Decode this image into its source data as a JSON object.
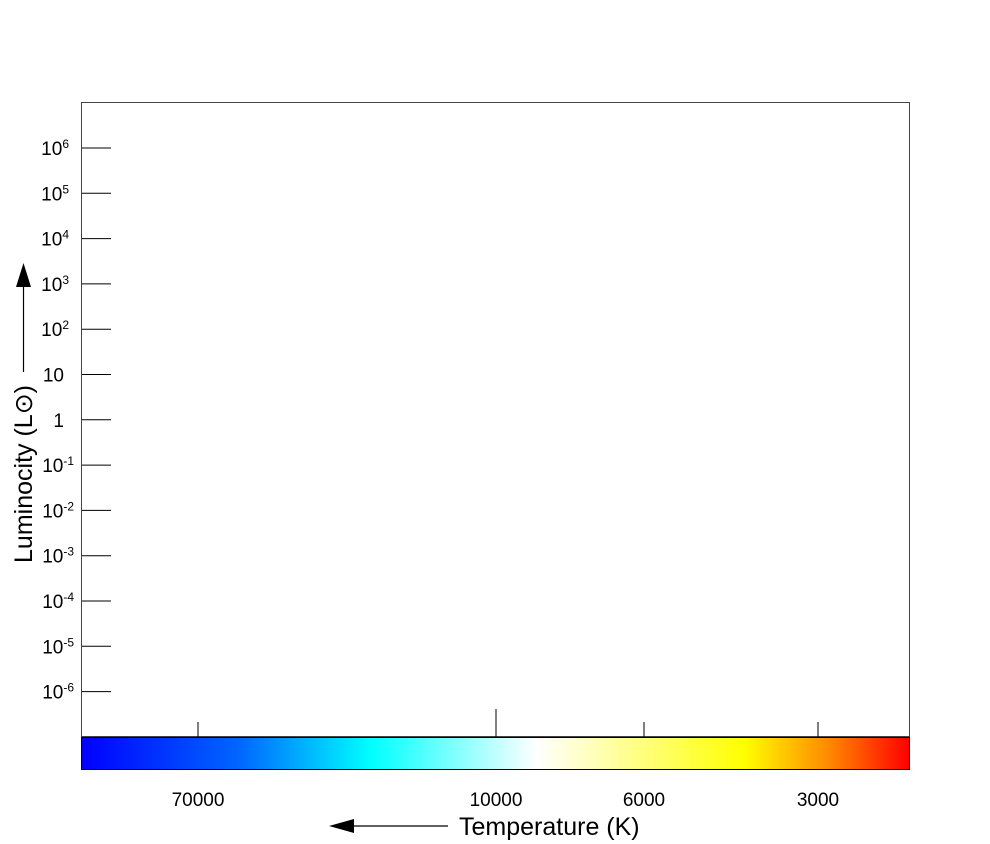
{
  "chart_data": {
    "type": "scatter",
    "title": "",
    "xlabel": "Temperature (K)",
    "ylabel": "Luminocity (L⊙)",
    "y_scale": "log",
    "x_scale": "log",
    "x_direction": "decreasing",
    "y_ticks": [
      {
        "base": "10",
        "exp": "6",
        "value": 1000000
      },
      {
        "base": "10",
        "exp": "5",
        "value": 100000
      },
      {
        "base": "10",
        "exp": "4",
        "value": 10000
      },
      {
        "base": "10",
        "exp": "3",
        "value": 1000
      },
      {
        "base": "10",
        "exp": "2",
        "value": 100
      },
      {
        "base": "10",
        "exp": "",
        "value": 10
      },
      {
        "base": "1",
        "exp": "",
        "value": 1
      },
      {
        "base": "10",
        "exp": "-1",
        "value": 0.1
      },
      {
        "base": "10",
        "exp": "-2",
        "value": 0.01
      },
      {
        "base": "10",
        "exp": "-3",
        "value": 0.001
      },
      {
        "base": "10",
        "exp": "-4",
        "value": 0.0001
      },
      {
        "base": "10",
        "exp": "-5",
        "value": 1e-05
      },
      {
        "base": "10",
        "exp": "-6",
        "value": 1e-06
      }
    ],
    "x_ticks": [
      {
        "label": "70000",
        "value": 70000
      },
      {
        "label": "10000",
        "value": 10000
      },
      {
        "label": "6000",
        "value": 6000
      },
      {
        "label": "3000",
        "value": 3000
      }
    ],
    "series": [],
    "grid": false,
    "legend": "none",
    "colorbar": [
      "#0000ff",
      "#0066ff",
      "#00ffff",
      "#ffffff",
      "#ffff00",
      "#ff8c00",
      "#ff0000"
    ]
  }
}
